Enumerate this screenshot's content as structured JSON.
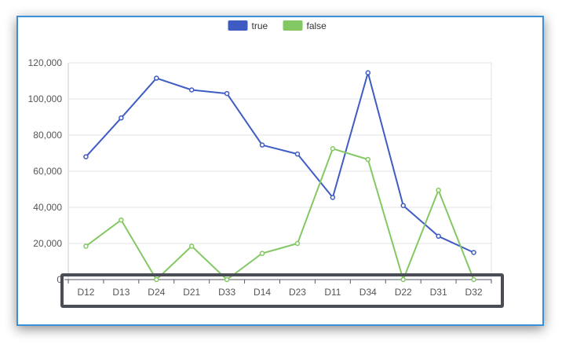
{
  "chart_data": {
    "type": "line",
    "categories": [
      "D12",
      "D13",
      "D24",
      "D21",
      "D33",
      "D14",
      "D23",
      "D11",
      "D34",
      "D22",
      "D31",
      "D32"
    ],
    "series": [
      {
        "name": "true",
        "color": "#3f5cc2",
        "values": [
          68000,
          89500,
          111500,
          105000,
          103000,
          74500,
          69500,
          45500,
          114500,
          41000,
          24000,
          15000
        ]
      },
      {
        "name": "false",
        "color": "#84c864",
        "values": [
          18500,
          33000,
          0,
          18500,
          0,
          14500,
          20000,
          72500,
          66500,
          0,
          49500,
          0
        ]
      }
    ],
    "y_ticks": [
      "0",
      "20,000",
      "40,000",
      "60,000",
      "80,000",
      "100,000",
      "120,000"
    ],
    "ylim": [
      0,
      120000
    ],
    "grid": true,
    "legend_position": "top-center",
    "highlight_color": "#4a4d55"
  }
}
